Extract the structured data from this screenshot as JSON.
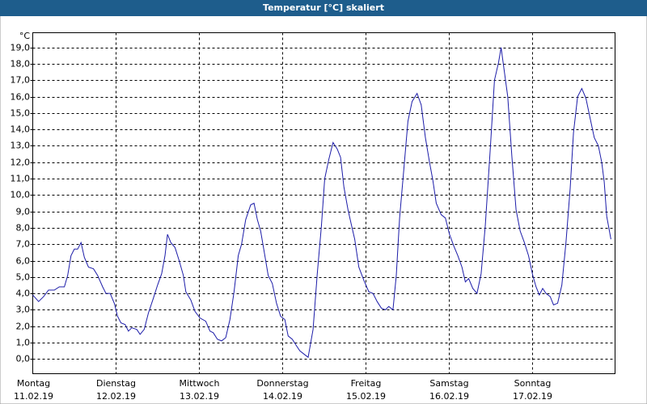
{
  "chart_data": {
    "type": "line",
    "title": "Temperatur [°C] skaliert",
    "y_label": "°C",
    "color": "#1c1ca8",
    "grid": true,
    "xlim": [
      0,
      7
    ],
    "xticks": [
      {
        "value": 0,
        "label": "Montag"
      },
      {
        "value": 1,
        "label": "Dienstag"
      },
      {
        "value": 2,
        "label": "Mittwoch"
      },
      {
        "value": 3,
        "label": "Donnerstag"
      },
      {
        "value": 4,
        "label": "Freitag"
      },
      {
        "value": 5,
        "label": "Samstag"
      },
      {
        "value": 6,
        "label": "Sonntag"
      }
    ],
    "xtick_dates": [
      "11.02.19",
      "12.02.19",
      "13.02.19",
      "14.02.19",
      "15.02.19",
      "16.02.19",
      "17.02.19"
    ],
    "ylim": [
      -0.9,
      19.9
    ],
    "yticks": [
      {
        "value": 0,
        "label": "0,0"
      },
      {
        "value": 1,
        "label": "1,0"
      },
      {
        "value": 2,
        "label": "2,0"
      },
      {
        "value": 3,
        "label": "3,0"
      },
      {
        "value": 4,
        "label": "4,0"
      },
      {
        "value": 5,
        "label": "5,0"
      },
      {
        "value": 6,
        "label": "6,0"
      },
      {
        "value": 7,
        "label": "7,0"
      },
      {
        "value": 8,
        "label": "8,0"
      },
      {
        "value": 9,
        "label": "9,0"
      },
      {
        "value": 10,
        "label": "10,0"
      },
      {
        "value": 11,
        "label": "11,0"
      },
      {
        "value": 12,
        "label": "12,0"
      },
      {
        "value": 13,
        "label": "13,0"
      },
      {
        "value": 14,
        "label": "14,0"
      },
      {
        "value": 15,
        "label": "15,0"
      },
      {
        "value": 16,
        "label": "16,0"
      },
      {
        "value": 17,
        "label": "17,0"
      },
      {
        "value": 18,
        "label": "18,0"
      },
      {
        "value": 19,
        "label": "19,0"
      }
    ],
    "x": [
      0,
      0.07,
      0.13,
      0.19,
      0.26,
      0.32,
      0.38,
      0.42,
      0.46,
      0.5,
      0.54,
      0.58,
      0.62,
      0.67,
      0.73,
      0.78,
      0.84,
      0.88,
      0.93,
      0.98,
      1.02,
      1.06,
      1.11,
      1.15,
      1.19,
      1.25,
      1.29,
      1.34,
      1.39,
      1.45,
      1.5,
      1.55,
      1.59,
      1.62,
      1.66,
      1.71,
      1.76,
      1.81,
      1.84,
      1.9,
      1.95,
      2.01,
      2.08,
      2.13,
      2.17,
      2.22,
      2.27,
      2.32,
      2.37,
      2.42,
      2.47,
      2.51,
      2.56,
      2.62,
      2.66,
      2.7,
      2.74,
      2.79,
      2.83,
      2.88,
      2.93,
      2.98,
      3.03,
      3.07,
      3.12,
      3.17,
      3.21,
      3.26,
      3.31,
      3.37,
      3.42,
      3.47,
      3.51,
      3.56,
      3.61,
      3.66,
      3.7,
      3.74,
      3.79,
      3.83,
      3.87,
      3.92,
      3.98,
      4.04,
      4.09,
      4.14,
      4.19,
      4.24,
      4.28,
      4.33,
      4.37,
      4.41,
      4.46,
      4.51,
      4.56,
      4.62,
      4.67,
      4.72,
      4.77,
      4.81,
      4.85,
      4.91,
      4.96,
      5.01,
      5.06,
      5.11,
      5.16,
      5.2,
      5.24,
      5.29,
      5.34,
      5.39,
      5.44,
      5.5,
      5.55,
      5.6,
      5.63,
      5.67,
      5.71,
      5.76,
      5.81,
      5.86,
      5.91,
      5.96,
      6.01,
      6.05,
      6.09,
      6.13,
      6.17,
      6.22,
      6.26,
      6.31,
      6.36,
      6.41,
      6.46,
      6.5,
      6.55,
      6.6,
      6.65,
      6.7,
      6.75,
      6.8,
      6.84,
      6.87,
      6.9,
      6.95
    ],
    "values": [
      3.9,
      3.5,
      3.8,
      4.2,
      4.2,
      4.4,
      4.4,
      5.1,
      6.3,
      6.7,
      6.7,
      7.1,
      6.2,
      5.6,
      5.5,
      5.1,
      4.4,
      4.0,
      4.0,
      3.4,
      2.6,
      2.2,
      2.1,
      1.7,
      1.9,
      1.8,
      1.5,
      1.8,
      2.8,
      3.7,
      4.5,
      5.2,
      6.3,
      7.6,
      7.1,
      6.8,
      6.0,
      5.1,
      4.1,
      3.6,
      2.9,
      2.5,
      2.3,
      1.7,
      1.6,
      1.2,
      1.1,
      1.3,
      2.4,
      4.1,
      6.3,
      7.0,
      8.5,
      9.4,
      9.5,
      8.5,
      7.8,
      6.3,
      5.1,
      4.6,
      3.4,
      2.6,
      2.4,
      1.4,
      1.2,
      0.8,
      0.5,
      0.3,
      0.1,
      1.8,
      5.2,
      8.1,
      11.0,
      12.2,
      13.2,
      12.8,
      12.3,
      10.5,
      9.1,
      8.2,
      7.3,
      5.6,
      4.8,
      4.1,
      4.0,
      3.5,
      3.1,
      3.0,
      3.2,
      3.0,
      5.1,
      8.6,
      11.5,
      14.5,
      15.7,
      16.2,
      15.5,
      13.5,
      12.0,
      10.9,
      9.5,
      8.8,
      8.6,
      7.6,
      6.9,
      6.3,
      5.6,
      4.7,
      4.9,
      4.3,
      4.0,
      5.2,
      8.1,
      12.8,
      17.0,
      18.1,
      19.0,
      17.5,
      16.0,
      12.3,
      9.1,
      7.8,
      7.1,
      6.3,
      5.1,
      4.4,
      3.9,
      4.3,
      4.0,
      3.8,
      3.3,
      3.4,
      4.5,
      7.1,
      10.4,
      13.8,
      16.0,
      16.5,
      15.9,
      14.7,
      13.5,
      13.0,
      12.0,
      10.8,
      8.7,
      7.3
    ]
  }
}
